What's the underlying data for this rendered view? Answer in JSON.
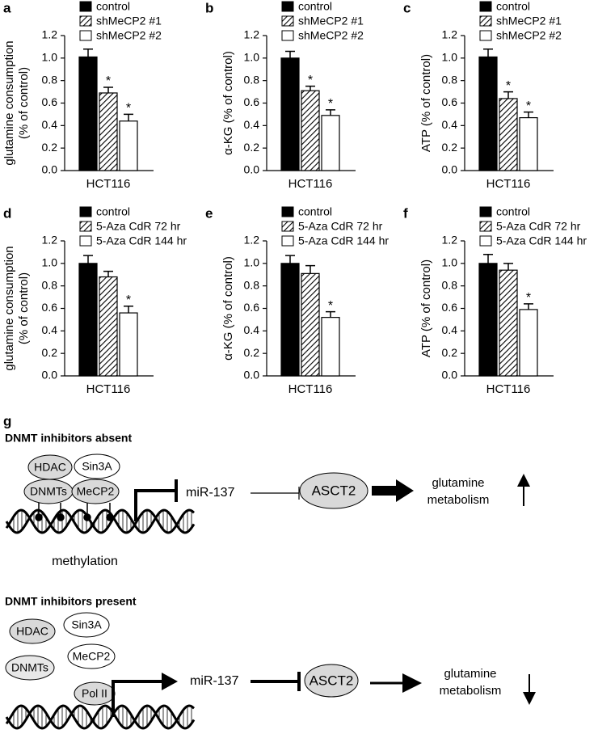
{
  "chart_data": [
    {
      "type": "bar",
      "panel": "a",
      "ylabel": [
        "glutamine consumption",
        "(% of control)"
      ],
      "categories": [
        "HCT116"
      ],
      "series": [
        {
          "name": "control",
          "color": "#000000",
          "pattern": "solid",
          "values": [
            1.01
          ],
          "errors": [
            0.07
          ]
        },
        {
          "name": "shMeCP2 #1",
          "color": "#ffffff",
          "pattern": "hatch",
          "values": [
            0.69
          ],
          "errors": [
            0.05
          ],
          "annotation": "*"
        },
        {
          "name": "shMeCP2 #2",
          "color": "#ffffff",
          "pattern": "solid",
          "values": [
            0.44
          ],
          "errors": [
            0.06
          ],
          "annotation": "*"
        }
      ],
      "ylim": [
        0,
        1.2
      ],
      "yticks": [
        {
          "value": 0,
          "label": "0.0"
        },
        0.2,
        0.4,
        0.6,
        0.8,
        {
          "value": 1,
          "label": "1.0"
        },
        1.2
      ]
    },
    {
      "type": "bar",
      "panel": "b",
      "ylabel": [
        "α-KG (% of control)"
      ],
      "categories": [
        "HCT116"
      ],
      "series": [
        {
          "name": "control",
          "color": "#000000",
          "pattern": "solid",
          "values": [
            1.0
          ],
          "errors": [
            0.06
          ]
        },
        {
          "name": "shMeCP2 #1",
          "color": "#ffffff",
          "pattern": "hatch",
          "values": [
            0.71
          ],
          "errors": [
            0.04
          ],
          "annotation": "*"
        },
        {
          "name": "shMeCP2 #2",
          "color": "#ffffff",
          "pattern": "solid",
          "values": [
            0.49
          ],
          "errors": [
            0.05
          ],
          "annotation": "*"
        }
      ],
      "ylim": [
        0,
        1.2
      ],
      "yticks": [
        {
          "value": 0,
          "label": "0.0"
        },
        0.2,
        0.4,
        0.6,
        0.8,
        {
          "value": 1,
          "label": "1.0"
        },
        1.2
      ]
    },
    {
      "type": "bar",
      "panel": "c",
      "ylabel": [
        "ATP (% of control)"
      ],
      "categories": [
        "HCT116"
      ],
      "series": [
        {
          "name": "control",
          "color": "#000000",
          "pattern": "solid",
          "values": [
            1.01
          ],
          "errors": [
            0.07
          ]
        },
        {
          "name": "shMeCP2 #1",
          "color": "#ffffff",
          "pattern": "hatch",
          "values": [
            0.64
          ],
          "errors": [
            0.06
          ],
          "annotation": "*"
        },
        {
          "name": "shMeCP2 #2",
          "color": "#ffffff",
          "pattern": "solid",
          "values": [
            0.47
          ],
          "errors": [
            0.05
          ],
          "annotation": "*"
        }
      ],
      "ylim": [
        0,
        1.2
      ],
      "yticks": [
        {
          "value": 0,
          "label": "0.0"
        },
        0.2,
        0.4,
        0.6,
        0.8,
        {
          "value": 1,
          "label": "1.0"
        },
        1.2
      ]
    },
    {
      "type": "bar",
      "panel": "d",
      "ylabel": [
        "glutamine consumption",
        "(% of control)"
      ],
      "categories": [
        "HCT116"
      ],
      "series": [
        {
          "name": "control",
          "color": "#000000",
          "pattern": "solid",
          "values": [
            1.0
          ],
          "errors": [
            0.07
          ]
        },
        {
          "name": "5-Aza CdR 72 hr",
          "color": "#ffffff",
          "pattern": "hatch",
          "values": [
            0.88
          ],
          "errors": [
            0.05
          ]
        },
        {
          "name": "5-Aza CdR 144 hr",
          "color": "#ffffff",
          "pattern": "solid",
          "values": [
            0.56
          ],
          "errors": [
            0.06
          ],
          "annotation": "*"
        }
      ],
      "ylim": [
        0,
        1.2
      ],
      "yticks": [
        {
          "value": 0,
          "label": "0.0"
        },
        0.2,
        0.4,
        0.6,
        0.8,
        {
          "value": 1,
          "label": "1.0"
        },
        1.2
      ]
    },
    {
      "type": "bar",
      "panel": "e",
      "ylabel": [
        "α-KG (% of control)"
      ],
      "categories": [
        "HCT116"
      ],
      "series": [
        {
          "name": "control",
          "color": "#000000",
          "pattern": "solid",
          "values": [
            1.0
          ],
          "errors": [
            0.07
          ]
        },
        {
          "name": "5-Aza CdR 72 hr",
          "color": "#ffffff",
          "pattern": "hatch",
          "values": [
            0.91
          ],
          "errors": [
            0.07
          ]
        },
        {
          "name": "5-Aza CdR 144 hr",
          "color": "#ffffff",
          "pattern": "solid",
          "values": [
            0.52
          ],
          "errors": [
            0.05
          ],
          "annotation": "*"
        }
      ],
      "ylim": [
        0,
        1.2
      ],
      "yticks": [
        {
          "value": 0,
          "label": "0.0"
        },
        0.2,
        0.4,
        0.6,
        0.8,
        {
          "value": 1,
          "label": "1.0"
        },
        1.2
      ]
    },
    {
      "type": "bar",
      "panel": "f",
      "ylabel": [
        "ATP (% of control)"
      ],
      "categories": [
        "HCT116"
      ],
      "series": [
        {
          "name": "control",
          "color": "#000000",
          "pattern": "solid",
          "values": [
            1.0
          ],
          "errors": [
            0.08
          ]
        },
        {
          "name": "5-Aza CdR 72 hr",
          "color": "#ffffff",
          "pattern": "hatch",
          "values": [
            0.94
          ],
          "errors": [
            0.06
          ]
        },
        {
          "name": "5-Aza CdR 144 hr",
          "color": "#ffffff",
          "pattern": "solid",
          "values": [
            0.59
          ],
          "errors": [
            0.05
          ],
          "annotation": "*"
        }
      ],
      "ylim": [
        0,
        1.2
      ],
      "yticks": [
        {
          "value": 0,
          "label": "0.0"
        },
        0.2,
        0.4,
        0.6,
        0.8,
        {
          "value": 1,
          "label": "1.0"
        },
        1.2
      ]
    }
  ],
  "diagram": {
    "panel": "g",
    "sections": [
      {
        "title": "DNMT inhibitors absent",
        "proteins": [
          "HDAC",
          "Sin3A",
          "DNMTs",
          "MeCP2"
        ],
        "mirna": "miR-137",
        "target": "ASCT2",
        "outcome": [
          "glutamine",
          "metabolism"
        ],
        "note": "methylation"
      },
      {
        "title": "DNMT inhibitors present",
        "proteins": [
          "HDAC",
          "Sin3A",
          "MeCP2",
          "DNMTs",
          "Pol II"
        ],
        "mirna": "miR-137",
        "target": "ASCT2",
        "outcome": [
          "glutamine",
          "metabolism"
        ]
      }
    ]
  }
}
